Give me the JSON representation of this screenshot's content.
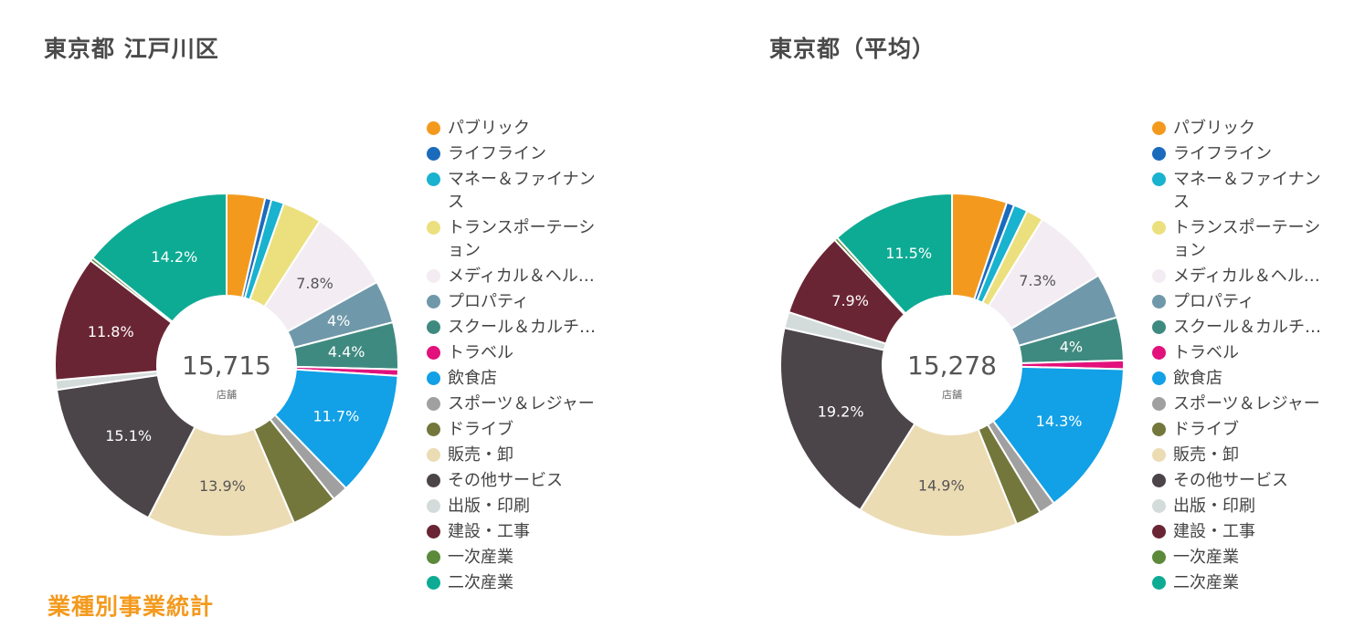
{
  "chart_data": [
    {
      "type": "pie",
      "title": "東京都 江戸川区",
      "center_value": "15,715",
      "center_unit": "店舗",
      "categories": [
        "パブリック",
        "ライフライン",
        "マネー＆ファイナンス",
        "トランスポーテーション",
        "メディカル＆ヘル…",
        "プロパティ",
        "スクール＆カルチ…",
        "トラベル",
        "飲食店",
        "スポーツ＆レジャー",
        "ドライブ",
        "販売・卸",
        "その他サービス",
        "出版・印刷",
        "建設・工事",
        "一次産業",
        "二次産業"
      ],
      "values": [
        3.6,
        0.6,
        1.2,
        3.7,
        7.8,
        4,
        4.4,
        0.6,
        11.7,
        1.5,
        4.3,
        13.9,
        15.1,
        0.9,
        11.8,
        0.3,
        14.2
      ],
      "data_labels": {
        "4": "7.8%",
        "5": "4%",
        "6": "4.4%",
        "8": "11.7%",
        "11": "13.9%",
        "12": "15.1%",
        "14": "11.8%",
        "16": "14.2%"
      },
      "legend_position": "right"
    },
    {
      "type": "pie",
      "title": "東京都（平均）",
      "center_value": "15,278",
      "center_unit": "店舗",
      "categories": [
        "パブリック",
        "ライフライン",
        "マネー＆ファイナンス",
        "トランスポーテーション",
        "メディカル＆ヘル…",
        "プロパティ",
        "スクール＆カルチ…",
        "トラベル",
        "飲食店",
        "スポーツ＆レジャー",
        "ドライブ",
        "販売・卸",
        "その他サービス",
        "出版・印刷",
        "建設・工事",
        "一次産業",
        "二次産業"
      ],
      "values": [
        5.1,
        0.7,
        1.3,
        1.6,
        7.3,
        4.2,
        4,
        0.8,
        14.3,
        1.5,
        2.4,
        14.9,
        19.2,
        1.5,
        7.9,
        0.3,
        11.5
      ],
      "data_labels": {
        "4": "7.3%",
        "6": "4%",
        "8": "14.3%",
        "11": "14.9%",
        "12": "19.2%",
        "14": "7.9%",
        "16": "11.5%"
      },
      "legend_position": "right"
    }
  ],
  "legend_items": [
    {
      "label": "パブリック",
      "color": "#f39a1e"
    },
    {
      "label": "ライフライン",
      "color": "#1b6bbd"
    },
    {
      "label": "マネー＆ファイナンス",
      "color": "#19b2cf"
    },
    {
      "label": "トランスポーテーション",
      "color": "#ece07e"
    },
    {
      "label": "メディカル＆ヘル…",
      "color": "#f4ecf3"
    },
    {
      "label": "プロパティ",
      "color": "#6f99aa"
    },
    {
      "label": "スクール＆カルチ…",
      "color": "#3f8a80"
    },
    {
      "label": "トラベル",
      "color": "#e2117b"
    },
    {
      "label": "飲食店",
      "color": "#12a0e6"
    },
    {
      "label": "スポーツ＆レジャー",
      "color": "#a0a0a0"
    },
    {
      "label": "ドライブ",
      "color": "#74773c"
    },
    {
      "label": "販売・卸",
      "color": "#ecdcb4"
    },
    {
      "label": "その他サービス",
      "color": "#4b4448"
    },
    {
      "label": "出版・印刷",
      "color": "#d4dcdb"
    },
    {
      "label": "建設・工事",
      "color": "#6a2534"
    },
    {
      "label": "一次産業",
      "color": "#5c8a3a"
    },
    {
      "label": "二次産業",
      "color": "#0eab94"
    }
  ],
  "footer": {
    "title": "業種別事業統計"
  }
}
